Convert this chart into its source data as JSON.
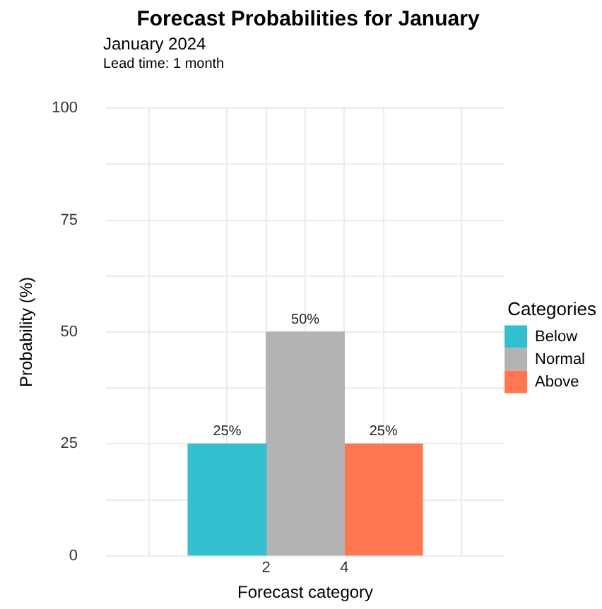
{
  "chart_data": {
    "type": "bar",
    "title": "Forecast Probabilities for January",
    "subtitle": "January 2024",
    "annotations": [
      "Lead time: 1 month"
    ],
    "xlabel": "Forecast category",
    "ylabel": "Probability (%)",
    "legend_title": "Categories",
    "legend": "right",
    "grid": true,
    "xlim": [
      -2.1,
      8.1
    ],
    "xticks": [
      {
        "value": -1,
        "label": null
      },
      {
        "value": 1,
        "label": null
      },
      2,
      {
        "value": 3,
        "label": null
      },
      4,
      {
        "value": 5,
        "label": null
      },
      {
        "value": 7,
        "label": null
      }
    ],
    "ylim": [
      0,
      100
    ],
    "yticks": [
      0,
      {
        "value": 12.5,
        "label": null
      },
      25,
      {
        "value": 37.5,
        "label": null
      },
      50,
      {
        "value": 62.5,
        "label": null
      },
      75,
      {
        "value": 87.5,
        "label": null
      },
      100
    ],
    "series": [
      {
        "name": "Below",
        "color": "#33bfd0",
        "x": [
          1
        ],
        "values": [
          25
        ],
        "value_labels": [
          "25%"
        ]
      },
      {
        "name": "Normal",
        "color": "#b3b3b3",
        "x": [
          3
        ],
        "values": [
          50
        ],
        "value_labels": [
          "50%"
        ]
      },
      {
        "name": "Above",
        "color": "#ff7650",
        "x": [
          5
        ],
        "values": [
          25
        ],
        "value_labels": [
          "25%"
        ]
      }
    ]
  }
}
